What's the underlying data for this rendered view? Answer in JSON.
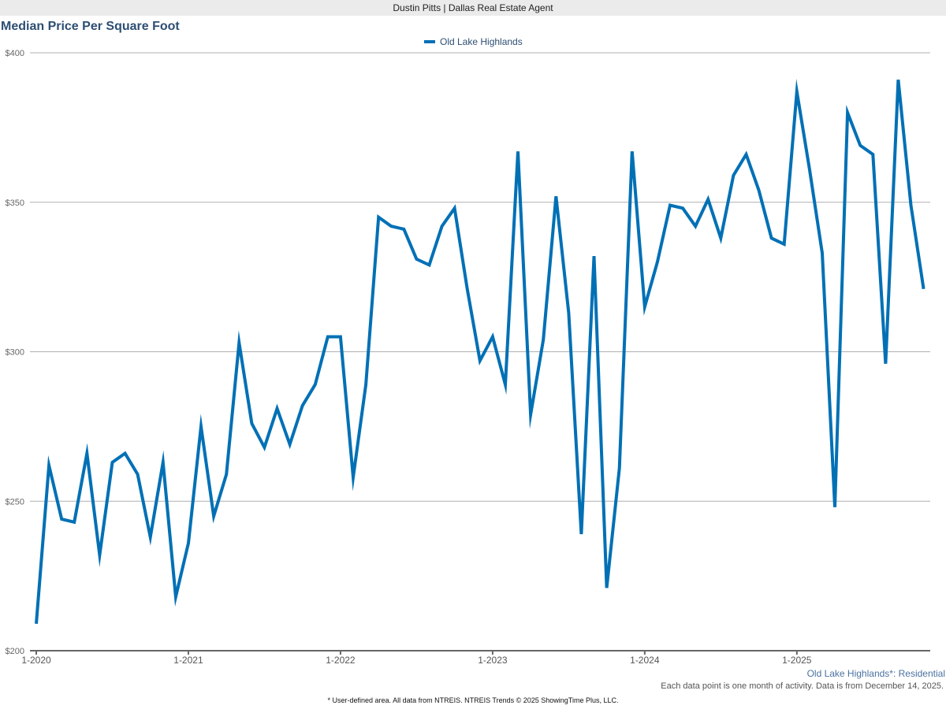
{
  "header": {
    "agent": "Dustin Pitts | Dallas Real Estate Agent"
  },
  "chart_data": {
    "type": "line",
    "title": "Median Price Per Square Foot",
    "xlabel": "",
    "ylabel": "",
    "ylim": [
      200,
      400
    ],
    "yticks": [
      200,
      250,
      300,
      350,
      400
    ],
    "ytick_labels": [
      "$200",
      "$250",
      "$300",
      "$350",
      "$400"
    ],
    "xtick_labels": [
      "1-2020",
      "1-2021",
      "1-2022",
      "1-2023",
      "1-2024",
      "1-2025"
    ],
    "grid": true,
    "legend_position": "top-center",
    "x": [
      "1-2020",
      "2-2020",
      "3-2020",
      "4-2020",
      "5-2020",
      "6-2020",
      "7-2020",
      "8-2020",
      "9-2020",
      "10-2020",
      "11-2020",
      "12-2020",
      "1-2021",
      "2-2021",
      "3-2021",
      "4-2021",
      "5-2021",
      "6-2021",
      "7-2021",
      "8-2021",
      "9-2021",
      "10-2021",
      "11-2021",
      "12-2021",
      "1-2022",
      "2-2022",
      "3-2022",
      "4-2022",
      "5-2022",
      "6-2022",
      "7-2022",
      "8-2022",
      "9-2022",
      "10-2022",
      "11-2022",
      "12-2022",
      "1-2023",
      "2-2023",
      "3-2023",
      "4-2023",
      "5-2023",
      "6-2023",
      "7-2023",
      "8-2023",
      "9-2023",
      "10-2023",
      "11-2023",
      "12-2023",
      "1-2024",
      "2-2024",
      "3-2024",
      "4-2024",
      "5-2024",
      "6-2024",
      "7-2024",
      "8-2024",
      "9-2024",
      "10-2024",
      "11-2024",
      "12-2024",
      "1-2025",
      "2-2025",
      "3-2025",
      "4-2025",
      "5-2025",
      "6-2025",
      "7-2025",
      "8-2025",
      "9-2025",
      "10-2025",
      "11-2025"
    ],
    "series": [
      {
        "name": "Old Lake Highlands",
        "color": "#0070b5",
        "values": [
          209,
          262,
          244,
          243,
          266,
          232,
          263,
          266,
          259,
          238,
          263,
          218,
          236,
          275,
          245,
          259,
          303,
          276,
          268,
          281,
          269,
          282,
          289,
          305,
          305,
          258,
          289,
          345,
          342,
          341,
          331,
          329,
          342,
          348,
          321,
          297,
          305,
          289,
          367,
          279,
          304,
          352,
          313,
          239,
          332,
          221,
          261,
          367,
          315,
          330,
          349,
          348,
          342,
          351,
          338,
          359,
          366,
          354,
          338,
          336,
          387,
          361,
          333,
          248,
          380,
          369,
          366,
          296,
          391,
          349,
          321
        ]
      }
    ]
  },
  "footer": {
    "area_label": "Old Lake Highlands*: Residential",
    "note": "Each data point is one month of activity. Data is from December 14, 2025.",
    "disclaimer": "* User-defined area. All data from NTREIS. NTREIS Trends © 2025 ShowingTime Plus, LLC."
  }
}
